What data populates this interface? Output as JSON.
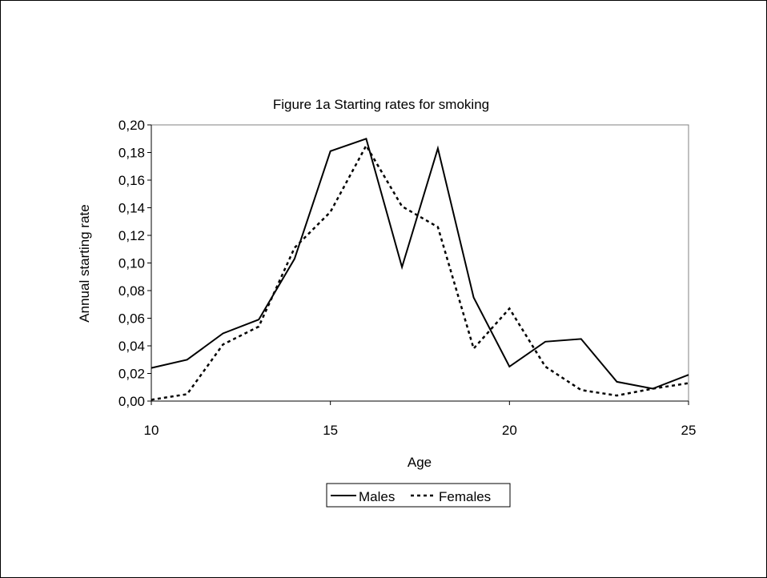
{
  "chart_data": {
    "type": "line",
    "title": "Figure 1a Starting rates for smoking",
    "xlabel": "Age",
    "ylabel": "Annual starting rate",
    "xlim": [
      10,
      25
    ],
    "ylim": [
      0,
      0.2
    ],
    "x_ticks": [
      10,
      15,
      20,
      25
    ],
    "x_tick_labels": [
      "10",
      "15",
      "20",
      "25"
    ],
    "y_ticks": [
      0,
      0.02,
      0.04,
      0.06,
      0.08,
      0.1,
      0.12,
      0.14,
      0.16,
      0.18,
      0.2
    ],
    "y_tick_labels": [
      "0,00",
      "0,02",
      "0,04",
      "0,06",
      "0,08",
      "0,10",
      "0,12",
      "0,14",
      "0,16",
      "0,18",
      "0,20"
    ],
    "grid": false,
    "legend_position": "bottom",
    "x": [
      10,
      11,
      12,
      13,
      14,
      15,
      16,
      17,
      18,
      19,
      20,
      21,
      22,
      23,
      24,
      25
    ],
    "series": [
      {
        "name": "Males",
        "style": "solid",
        "color": "#000000",
        "values": [
          0.024,
          0.03,
          0.049,
          0.059,
          0.103,
          0.181,
          0.19,
          0.097,
          0.183,
          0.075,
          0.025,
          0.043,
          0.045,
          0.014,
          0.009,
          0.019
        ]
      },
      {
        "name": "Females",
        "style": "dashed",
        "color": "#000000",
        "values": [
          0.001,
          0.005,
          0.041,
          0.054,
          0.111,
          0.137,
          0.185,
          0.141,
          0.126,
          0.038,
          0.067,
          0.025,
          0.008,
          0.004,
          0.009,
          0.013
        ]
      }
    ]
  }
}
